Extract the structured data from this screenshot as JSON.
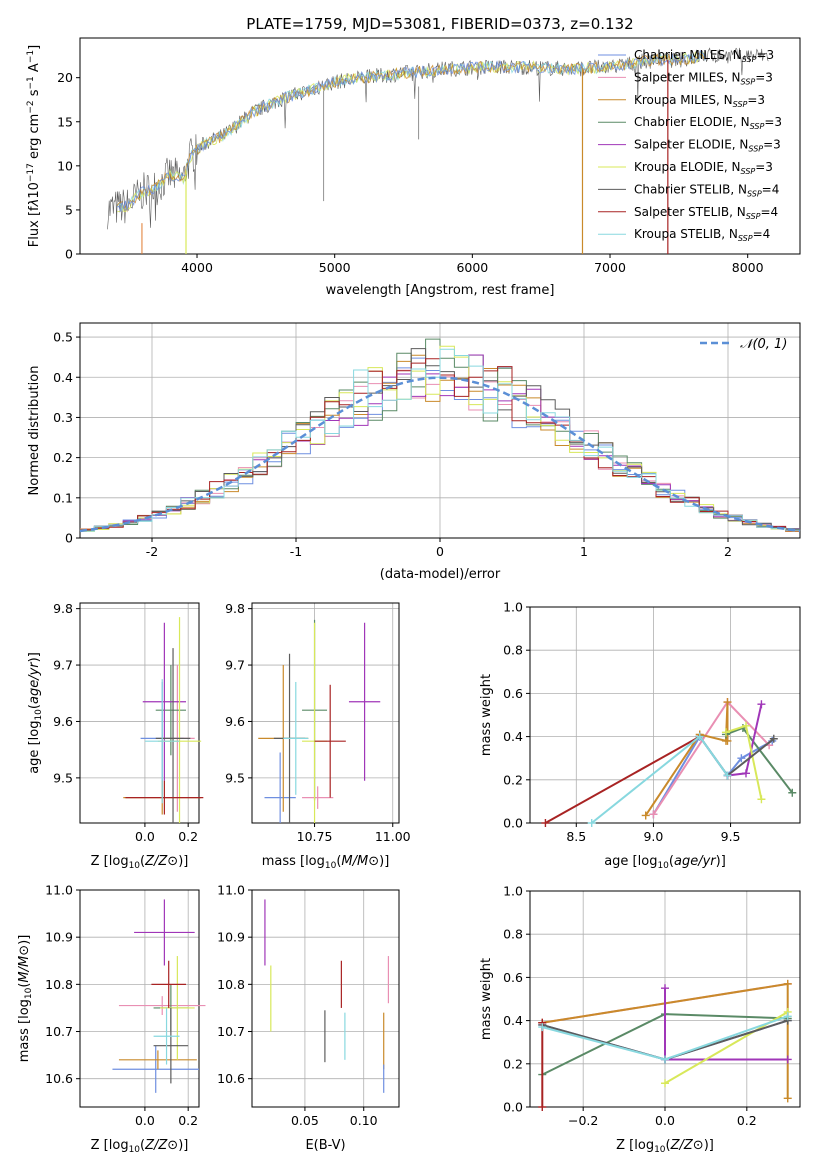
{
  "title": "PLATE=1759, MJD=53081, FIBERID=0373, z=0.132",
  "colors": {
    "Chabrier MILES": "#6f8fe0",
    "Salpeter MILES": "#e98fb3",
    "Kroupa MILES": "#c98a2b",
    "Chabrier ELODIE": "#5a8a66",
    "Salpeter ELODIE": "#a036b8",
    "Kroupa ELODIE": "#d8e85a",
    "Chabrier STELIB": "#5c5c5c",
    "Salpeter STELIB": "#a82323",
    "Kroupa STELIB": "#88d8df",
    "orange": "#e07a2e",
    "normal": "#5b8fd6"
  },
  "chart_data": [
    {
      "id": "spectrum",
      "type": "line",
      "title": "PLATE=1759, MJD=53081, FIBERID=0373, z=0.132",
      "xlabel": "wavelength [Angstrom, rest frame]",
      "ylabel_parts": [
        "Flux [f",
        "λ",
        "10",
        "−17",
        " erg cm",
        "−2",
        " s",
        "−1",
        " A",
        "−1",
        "]"
      ],
      "xlim": [
        3150,
        8380
      ],
      "ylim": [
        0,
        24.5
      ],
      "xticks": [
        4000,
        5000,
        6000,
        7000,
        8000
      ],
      "yticks": [
        0,
        5,
        10,
        15,
        20
      ],
      "grid": false,
      "legend_position": "top-right",
      "legend": [
        {
          "name": "Chabrier MILES",
          "nssp": "3"
        },
        {
          "name": "Salpeter MILES",
          "nssp": "3"
        },
        {
          "name": "Kroupa MILES",
          "nssp": "3"
        },
        {
          "name": "Chabrier ELODIE",
          "nssp": "3"
        },
        {
          "name": "Salpeter ELODIE",
          "nssp": "3"
        },
        {
          "name": "Kroupa ELODIE",
          "nssp": "3"
        },
        {
          "name": "Chabrier STELIB",
          "nssp": "4"
        },
        {
          "name": "Salpeter STELIB",
          "nssp": "4"
        },
        {
          "name": "Kroupa STELIB",
          "nssp": "4"
        }
      ],
      "spectrum_envelope": {
        "x": [
          3350,
          3500,
          3600,
          3700,
          3800,
          3900,
          3950,
          4050,
          4200,
          4400,
          4600,
          4800,
          5000,
          5200,
          5500,
          5800,
          6100,
          6400,
          6700,
          7000,
          7300,
          7500,
          7700
        ],
        "y": [
          5,
          5.5,
          7,
          7.5,
          9,
          8.5,
          11,
          12.5,
          13.5,
          16,
          17.5,
          18.5,
          19.5,
          20,
          20.5,
          21,
          21.2,
          21.2,
          21,
          21.2,
          22,
          22,
          22.5
        ]
      },
      "model_start": [
        {
          "series": "Kroupa ELODIE",
          "x": 3920
        },
        {
          "series": "Kroupa MILES",
          "x": 6800
        },
        {
          "series": "Salpeter STELIB",
          "x": 7420
        }
      ]
    },
    {
      "id": "residuals",
      "type": "line",
      "xlabel": "(data-model)/error",
      "ylabel": "Normed distribution",
      "xlim": [
        -2.5,
        2.5
      ],
      "ylim": [
        0,
        0.535
      ],
      "xticks": [
        -2,
        -1,
        0,
        1,
        2
      ],
      "yticks": [
        0.0,
        0.1,
        0.2,
        0.3,
        0.4,
        0.5
      ],
      "grid": true,
      "legend_position": "top-right",
      "legend": "𝒩(0, 1)",
      "normal": {
        "mean": 0,
        "std": 1
      }
    },
    {
      "id": "z-age",
      "type": "scatter",
      "xlabel": "Z [log10(Z/Z⊙)]",
      "ylabel": "age [log10(age/yr)]",
      "xlim": [
        -0.3,
        0.25
      ],
      "ylim": [
        9.42,
        9.81
      ],
      "xticks": [
        "0.0",
        "0.2"
      ],
      "yticks": [
        "9.5",
        "9.6",
        "9.7",
        "9.8"
      ],
      "grid": true,
      "points": [
        {
          "series": "Chabrier MILES",
          "x": 0.08,
          "y": 9.57,
          "xerr": 0.1,
          "yerr": 0.1
        },
        {
          "series": "Salpeter MILES",
          "x": 0.15,
          "y": 9.57,
          "xerr": 0.08,
          "yerr": 0.13
        },
        {
          "series": "Kroupa MILES",
          "x": 0.08,
          "y": 9.465,
          "xerr": 0.18,
          "yerr": 0.03
        },
        {
          "series": "Chabrier ELODIE",
          "x": 0.12,
          "y": 9.62,
          "xerr": 0.07,
          "yerr": 0.08
        },
        {
          "series": "Salpeter ELODIE",
          "x": 0.09,
          "y": 9.635,
          "xerr": 0.1,
          "yerr": 0.14
        },
        {
          "series": "Kroupa ELODIE",
          "x": 0.16,
          "y": 9.565,
          "xerr": 0.1,
          "yerr": 0.22
        },
        {
          "series": "Chabrier STELIB",
          "x": 0.13,
          "y": 9.57,
          "xerr": 0.08,
          "yerr": 0.16
        },
        {
          "series": "Salpeter STELIB",
          "x": 0.09,
          "y": 9.465,
          "xerr": 0.18,
          "yerr": 0.03
        },
        {
          "series": "Kroupa STELIB",
          "x": 0.08,
          "y": 9.565,
          "xerr": 0.08,
          "yerr": 0.11
        }
      ]
    },
    {
      "id": "mass-age",
      "type": "scatter",
      "xlabel": "mass [log10(M/M⊙)]",
      "xlim": [
        10.55,
        11.02
      ],
      "ylim": [
        9.42,
        9.81
      ],
      "xticks": [
        "10.75",
        "11.00"
      ],
      "yticks": [
        "9.5",
        "9.6",
        "9.7",
        "9.8"
      ],
      "grid": true,
      "points": [
        {
          "series": "Chabrier MILES",
          "x": 10.64,
          "y": 9.465,
          "xerr": 0.05,
          "yerr": 0.08
        },
        {
          "series": "Salpeter MILES",
          "x": 10.76,
          "y": 9.465,
          "xerr": 0.05,
          "yerr": 0.02
        },
        {
          "series": "Kroupa MILES",
          "x": 10.65,
          "y": 9.57,
          "xerr": 0.08,
          "yerr": 0.13
        },
        {
          "series": "Chabrier ELODIE",
          "x": 10.75,
          "y": 9.62,
          "xerr": 0.04,
          "yerr": 0.16
        },
        {
          "series": "Salpeter ELODIE",
          "x": 10.91,
          "y": 9.635,
          "xerr": 0.05,
          "yerr": 0.14
        },
        {
          "series": "Kroupa ELODIE",
          "x": 10.75,
          "y": 9.565,
          "xerr": 0.04,
          "yerr": 0.21
        },
        {
          "series": "Chabrier STELIB",
          "x": 10.67,
          "y": 9.57,
          "xerr": 0.05,
          "yerr": 0.15
        },
        {
          "series": "Salpeter STELIB",
          "x": 10.8,
          "y": 9.565,
          "xerr": 0.05,
          "yerr": 0.1
        },
        {
          "series": "Kroupa STELIB",
          "x": 10.69,
          "y": 9.57,
          "xerr": 0.04,
          "yerr": 0.1
        }
      ]
    },
    {
      "id": "age-weight",
      "type": "line",
      "xlabel": "age [log10(age/yr)]",
      "ylabel": "mass weight",
      "xlim": [
        8.2,
        9.95
      ],
      "ylim": [
        0,
        1.0
      ],
      "xticks": [
        "8.5",
        "9.0",
        "9.5"
      ],
      "yticks": [
        "0.0",
        "0.2",
        "0.4",
        "0.6",
        "0.8",
        "1.0"
      ],
      "grid": true,
      "series": [
        {
          "name": "Chabrier MILES",
          "x": [
            9.0,
            9.3,
            9.48,
            9.57,
            9.77
          ],
          "y": [
            0.04,
            0.4,
            0.22,
            0.3,
            0.38
          ]
        },
        {
          "name": "Salpeter MILES",
          "x": [
            9.0,
            9.48,
            9.75
          ],
          "y": [
            0.04,
            0.56,
            0.36
          ]
        },
        {
          "name": "Kroupa MILES",
          "x": [
            8.95,
            9.3,
            9.47,
            9.48,
            9.48
          ],
          "y": [
            0.035,
            0.41,
            0.38,
            0.56,
            0.38
          ]
        },
        {
          "name": "Chabrier ELODIE",
          "x": [
            9.47,
            9.58,
            9.9
          ],
          "y": [
            0.41,
            0.44,
            0.14
          ]
        },
        {
          "name": "Salpeter ELODIE",
          "x": [
            9.48,
            9.6,
            9.7
          ],
          "y": [
            0.22,
            0.23,
            0.55
          ]
        },
        {
          "name": "Kroupa ELODIE",
          "x": [
            9.47,
            9.6,
            9.7
          ],
          "y": [
            0.42,
            0.45,
            0.11
          ]
        },
        {
          "name": "Chabrier STELIB",
          "x": [
            9.3,
            9.48,
            9.78
          ],
          "y": [
            0.4,
            0.22,
            0.39
          ]
        },
        {
          "name": "Salpeter STELIB",
          "x": [
            8.3,
            9.3
          ],
          "y": [
            0.0,
            0.4
          ]
        },
        {
          "name": "Kroupa STELIB",
          "x": [
            8.6,
            9.3,
            9.48
          ],
          "y": [
            0.0,
            0.4,
            0.22
          ]
        }
      ]
    },
    {
      "id": "z-mass",
      "type": "scatter",
      "xlabel": "Z [log10(Z/Z⊙)]",
      "ylabel": "mass [log10(M/M⊙)]",
      "xlim": [
        -0.3,
        0.25
      ],
      "ylim": [
        10.54,
        11.0
      ],
      "xticks": [
        "0.0",
        "0.2"
      ],
      "yticks": [
        "10.6",
        "10.7",
        "10.8",
        "10.9",
        "11.0"
      ],
      "grid": true,
      "points": [
        {
          "series": "Chabrier MILES",
          "x": 0.05,
          "y": 10.62,
          "xerr": 0.2,
          "yerr": 0.05
        },
        {
          "series": "Salpeter MILES",
          "x": 0.08,
          "y": 10.755,
          "xerr": 0.2,
          "yerr": 0.02
        },
        {
          "series": "Kroupa MILES",
          "x": 0.06,
          "y": 10.64,
          "xerr": 0.18,
          "yerr": 0.02
        },
        {
          "series": "Chabrier ELODIE",
          "x": 0.12,
          "y": 10.75,
          "xerr": 0.08,
          "yerr": 0.05
        },
        {
          "series": "Salpeter ELODIE",
          "x": 0.09,
          "y": 10.91,
          "xerr": 0.14,
          "yerr": 0.07
        },
        {
          "series": "Kroupa ELODIE",
          "x": 0.15,
          "y": 10.75,
          "xerr": 0.08,
          "yerr": 0.11
        },
        {
          "series": "Chabrier STELIB",
          "x": 0.12,
          "y": 10.67,
          "xerr": 0.08,
          "yerr": 0.08
        },
        {
          "series": "Salpeter STELIB",
          "x": 0.11,
          "y": 10.8,
          "xerr": 0.08,
          "yerr": 0.05
        },
        {
          "series": "Kroupa STELIB",
          "x": 0.1,
          "y": 10.69,
          "xerr": 0.06,
          "yerr": 0.06
        }
      ]
    },
    {
      "id": "ebv-mass",
      "type": "scatter",
      "xlabel": "E(B-V)",
      "xlim": [
        0.005,
        0.13
      ],
      "ylim": [
        10.54,
        11.0
      ],
      "xticks": [
        "0.05",
        "0.10"
      ],
      "yticks": [
        "10.6",
        "10.7",
        "10.8",
        "10.9",
        "11.0"
      ],
      "grid": true,
      "points": [
        {
          "series": "Salpeter ELODIE",
          "x": 0.016,
          "y": 10.91,
          "yerr": 0.07
        },
        {
          "series": "Kroupa ELODIE",
          "x": 0.021,
          "y": 10.77,
          "yerr": 0.07
        },
        {
          "series": "Chabrier STELIB",
          "x": 0.067,
          "y": 10.69,
          "yerr": 0.055
        },
        {
          "series": "Salpeter STELIB",
          "x": 0.081,
          "y": 10.8,
          "yerr": 0.05
        },
        {
          "series": "Kroupa STELIB",
          "x": 0.084,
          "y": 10.69,
          "yerr": 0.05
        },
        {
          "series": "Kroupa MILES",
          "x": 0.117,
          "y": 10.68,
          "yerr": 0.06
        },
        {
          "series": "Salpeter MILES",
          "x": 0.121,
          "y": 10.81,
          "yerr": 0.05
        },
        {
          "series": "Chabrier MILES",
          "x": 0.117,
          "y": 10.6,
          "yerr": 0.03
        }
      ]
    },
    {
      "id": "z-weight",
      "type": "line",
      "xlabel": "Z [log10(Z/Z⊙)]",
      "ylabel": "mass weight",
      "xlim": [
        -0.33,
        0.33
      ],
      "ylim": [
        0,
        1.0
      ],
      "xticks": [
        "−0.2",
        "0.0",
        "0.2"
      ],
      "yticks": [
        "0.0",
        "0.2",
        "0.4",
        "0.6",
        "0.8",
        "1.0"
      ],
      "grid": true,
      "series": [
        {
          "name": "Chabrier MILES",
          "x": [
            -0.3,
            0.0,
            0.3
          ],
          "y": [
            0.38,
            0.22,
            0.4
          ]
        },
        {
          "name": "Salpeter MILES",
          "x": [
            -0.3,
            0.3
          ],
          "y": [
            0.39,
            0.57
          ]
        },
        {
          "name": "Kroupa MILES",
          "x": [
            -0.3,
            0.3,
            0.3
          ],
          "y": [
            0.39,
            0.57,
            0.04
          ]
        },
        {
          "name": "Chabrier ELODIE",
          "x": [
            -0.3,
            0.0,
            0.3
          ],
          "y": [
            0.15,
            0.43,
            0.41
          ]
        },
        {
          "name": "Salpeter ELODIE",
          "x": [
            0.0,
            0.0,
            0.3
          ],
          "y": [
            0.55,
            0.22,
            0.22
          ]
        },
        {
          "name": "Kroupa ELODIE",
          "x": [
            0.0,
            0.3
          ],
          "y": [
            0.11,
            0.44
          ]
        },
        {
          "name": "Chabrier STELIB",
          "x": [
            -0.3,
            0.0,
            0.3
          ],
          "y": [
            0.38,
            0.22,
            0.4
          ]
        },
        {
          "name": "Salpeter STELIB",
          "x": [
            -0.3,
            -0.3
          ],
          "y": [
            0.0,
            0.39
          ]
        },
        {
          "name": "Kroupa STELIB",
          "x": [
            -0.3,
            0.0,
            0.3
          ],
          "y": [
            0.37,
            0.22,
            0.42
          ]
        }
      ]
    }
  ]
}
